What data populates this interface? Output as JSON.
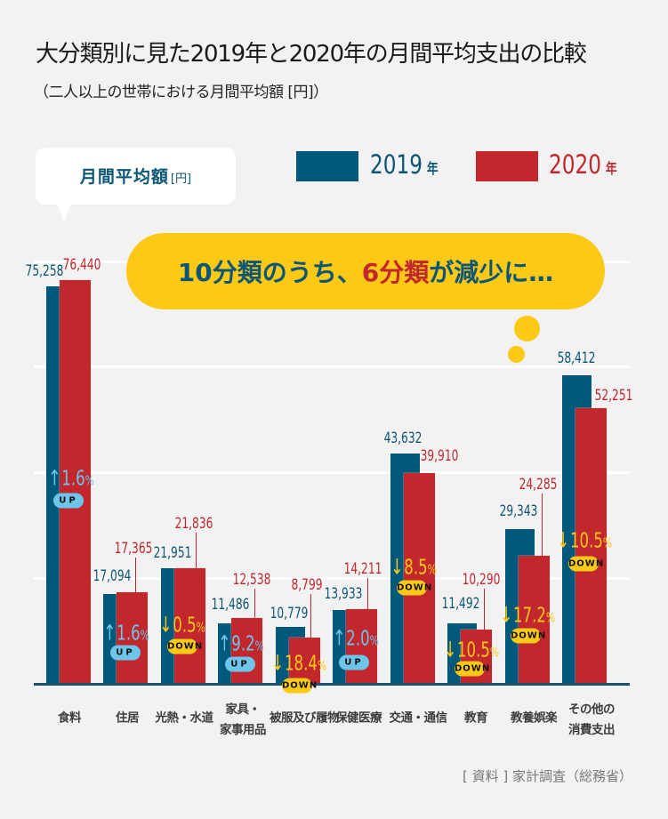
{
  "header": {
    "title": "大分類別に見た2019年と2020年の月間平均支出の比較",
    "subtitle": "（二人以上の世帯における月間平均額 [円]）"
  },
  "unit_bubble": {
    "label": "月間平均額",
    "unit": "[円]"
  },
  "legend": [
    {
      "year": "2019",
      "suffix": "年",
      "color": "#00597a"
    },
    {
      "year": "2020",
      "suffix": "年",
      "color": "#c1272d"
    }
  ],
  "banner": {
    "part1": "10分類のうち、",
    "part2": "6分類",
    "part3": "が減少に…",
    "color_main": "#0c5675",
    "color_highlight": "#c1272d",
    "background": "#fcc917"
  },
  "source": "[ 資料 ] 家計調査（総務省）",
  "chart_data": {
    "type": "bar",
    "title": "大分類別に見た2019年と2020年の月間平均支出の比較",
    "subtitle": "（二人以上の世帯における月間平均額 [円]）",
    "xlabel": "",
    "ylabel": "月間平均額 [円]",
    "ylim": [
      0,
      80000
    ],
    "gridlines": [
      20000,
      40000,
      60000,
      80000
    ],
    "grid": true,
    "legend_position": "top-right",
    "categories": [
      "食料",
      "住居",
      "光熱・水道",
      "家具・家事用品",
      "被服及び履物",
      "保健医療",
      "交通・通信",
      "教育",
      "教養娯楽",
      "その他の消費支出"
    ],
    "category_lines": [
      [
        "食料"
      ],
      [
        "住居"
      ],
      [
        "光熱・水道"
      ],
      [
        "家具・",
        "家事用品"
      ],
      [
        "被服及び履物"
      ],
      [
        "保健医療"
      ],
      [
        "交通・通信"
      ],
      [
        "教育"
      ],
      [
        "教養娯楽"
      ],
      [
        "その他の",
        "消費支出"
      ]
    ],
    "series": [
      {
        "name": "2019年",
        "color": "#00597a",
        "values": [
          75258,
          17094,
          21951,
          11486,
          10779,
          13933,
          43632,
          11492,
          29343,
          58412
        ],
        "labels": [
          "75,258",
          "17,094",
          "21,951",
          "11,486",
          "10,779",
          "13,933",
          "43,632",
          "11,492",
          "29,343",
          "58,412"
        ]
      },
      {
        "name": "2020年",
        "color": "#c1272d",
        "values": [
          76440,
          17365,
          21836,
          12538,
          8799,
          14211,
          39910,
          10290,
          24285,
          52251
        ],
        "labels": [
          "76,440",
          "17,365",
          "21,836",
          "12,538",
          "8,799",
          "14,211",
          "39,910",
          "10,290",
          "24,285",
          "52,251"
        ]
      }
    ],
    "changes": [
      {
        "value": "1.6",
        "direction": "up",
        "badge": "UP"
      },
      {
        "value": "1.6",
        "direction": "up",
        "badge": "UP"
      },
      {
        "value": "0.5",
        "direction": "down",
        "badge": "DOWN"
      },
      {
        "value": "9.2",
        "direction": "up",
        "badge": "UP"
      },
      {
        "value": "18.4",
        "direction": "down",
        "badge": "DOWN"
      },
      {
        "value": "2.0",
        "direction": "up",
        "badge": "UP"
      },
      {
        "value": "8.5",
        "direction": "down",
        "badge": "DOWN"
      },
      {
        "value": "10.5",
        "direction": "down",
        "badge": "DOWN"
      },
      {
        "value": "17.2",
        "direction": "down",
        "badge": "DOWN"
      },
      {
        "value": "10.5",
        "direction": "down",
        "badge": "DOWN"
      }
    ],
    "pct_sign": "%",
    "arrow_up": "↑",
    "arrow_down": "↓"
  }
}
